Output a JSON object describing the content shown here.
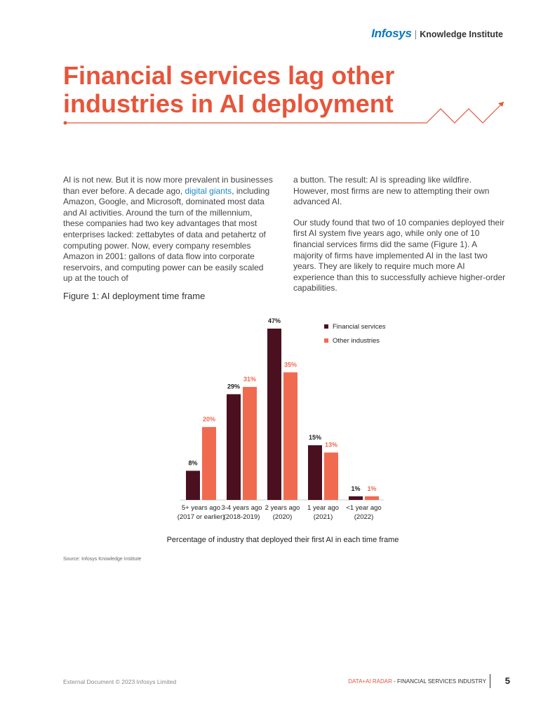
{
  "header": {
    "brand_logo": "Infosys",
    "brand_separator": "|",
    "brand_name": "Knowledge Institute"
  },
  "title": "Financial services lag other industries in AI deployment",
  "body": {
    "col1_pre_link": "AI is not new. But it is now more prevalent in businesses than ever before. A decade ago, ",
    "col1_link": "digital giants",
    "col1_post_link": ", including Amazon, Google, and Microsoft, dominated most data and AI activities. Around the turn of the millennium, these companies had two key advantages that most enterprises lacked: zettabytes of data and petahertz of computing power. Now, every company resembles Amazon in 2001: gallons of data flow into corporate reservoirs, and computing power can be easily scaled up at the touch of",
    "col2_p1": "a button. The result: AI is spreading like wildfire. However, most firms are new to attempting their own advanced AI.",
    "col2_p2": "Our study found that two of 10 companies deployed their first AI system five years ago, while only one of 10 financial services firms did the same (Figure 1). A majority of firms have implemented AI in the last two years. They are likely to require much more AI experience than this to successfully achieve higher-order capabilities."
  },
  "figure": {
    "title": "Figure 1: AI deployment time frame",
    "source": "Source: Infosys Knowledge Institute"
  },
  "chart_data": {
    "type": "bar",
    "title": "Figure 1: AI deployment time frame",
    "xlabel": "Percentage of industry that deployed their first AI in each time frame",
    "ylabel": "",
    "ylim": [
      0,
      47
    ],
    "grid": false,
    "legend_position": "top-right",
    "categories": [
      [
        "5+ years ago",
        "(2017 or earlier)"
      ],
      [
        "3-4 years ago",
        "(2018-2019)"
      ],
      [
        "2 years ago",
        "(2020)"
      ],
      [
        "1 year ago",
        "(2021)"
      ],
      [
        "<1 year ago",
        "(2022)"
      ]
    ],
    "series": [
      {
        "name": "Financial services",
        "color": "#4a1020",
        "values": [
          8,
          29,
          47,
          15,
          1
        ],
        "labels": [
          "8%",
          "29%",
          "47%",
          "15%",
          "1%"
        ]
      },
      {
        "name": "Other industries",
        "color": "#f06a50",
        "values": [
          20,
          31,
          35,
          13,
          1
        ],
        "labels": [
          "20%",
          "31%",
          "35%",
          "13%",
          "1%"
        ]
      }
    ]
  },
  "footer": {
    "copyright": "External Document © 2023 Infosys Limited",
    "report_highlight": "DATA+AI RADAR",
    "report_rest": " - FINANCIAL SERVICES INDUSTRY",
    "page_number": "5"
  },
  "colors": {
    "accent": "#e7553a",
    "link": "#1e88c9",
    "brand_blue": "#0a78be"
  }
}
